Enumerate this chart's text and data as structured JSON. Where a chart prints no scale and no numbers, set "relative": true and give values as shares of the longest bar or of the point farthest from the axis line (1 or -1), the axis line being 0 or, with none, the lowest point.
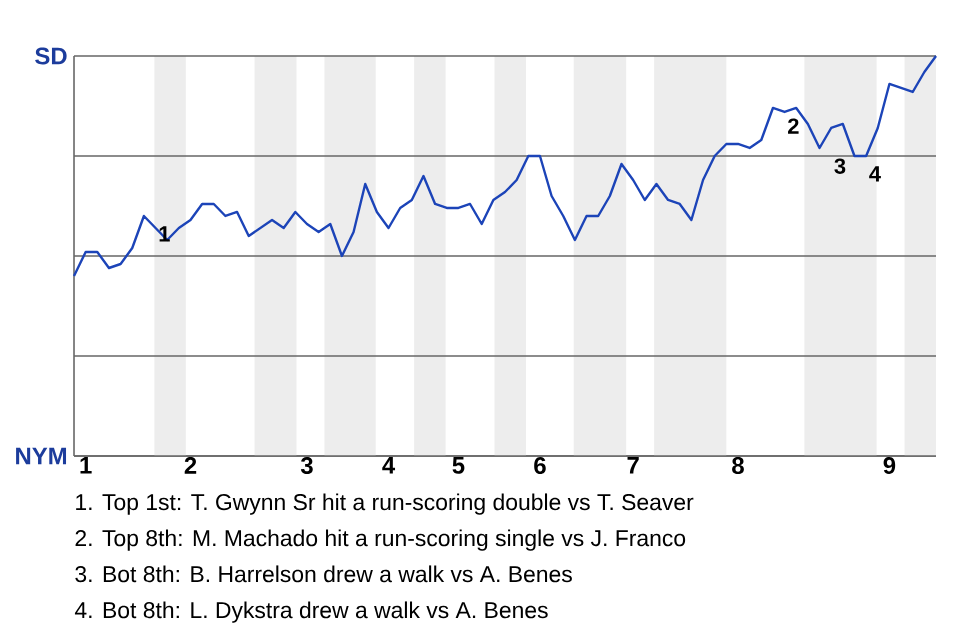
{
  "chart_data": {
    "type": "line",
    "relative": true,
    "categories": [
      null,
      "1",
      null,
      null,
      null,
      null,
      null,
      null,
      null,
      null,
      "2",
      null,
      null,
      null,
      null,
      null,
      null,
      null,
      null,
      null,
      "3",
      null,
      null,
      null,
      null,
      null,
      null,
      "4",
      null,
      null,
      null,
      null,
      null,
      "5",
      null,
      null,
      null,
      null,
      null,
      null,
      "6",
      null,
      null,
      null,
      null,
      null,
      null,
      null,
      "7",
      null,
      null,
      null,
      null,
      null,
      null,
      null,
      null,
      "8",
      null,
      null,
      null,
      null,
      null,
      null,
      null,
      null,
      null,
      null,
      null,
      null,
      "9",
      null,
      null,
      null,
      null
    ],
    "series": [
      {
        "color": "#1c44b8",
        "values": [
          0.45,
          0.51,
          0.51,
          0.47,
          0.48,
          0.52,
          0.6,
          0.57,
          0.54,
          0.57,
          0.59,
          0.63,
          0.63,
          0.6,
          0.61,
          0.55,
          0.57,
          0.59,
          0.57,
          0.61,
          0.58,
          0.56,
          0.58,
          0.5,
          0.56,
          0.68,
          0.61,
          0.57,
          0.62,
          0.64,
          0.7,
          0.63,
          0.62,
          0.62,
          0.63,
          0.58,
          0.64,
          0.66,
          0.69,
          0.75,
          0.75,
          0.65,
          0.6,
          0.54,
          0.6,
          0.6,
          0.65,
          0.73,
          0.69,
          0.64,
          0.68,
          0.64,
          0.63,
          0.59,
          0.69,
          0.75,
          0.78,
          0.78,
          0.77,
          0.79,
          0.87,
          0.86,
          0.87,
          0.83,
          0.77,
          0.82,
          0.83,
          0.75,
          0.75,
          0.82,
          0.93,
          0.92,
          0.91,
          0.96,
          1
        ]
      }
    ],
    "grid": "y",
    "annotations": [
      "SD",
      "NYM",
      "1",
      "2",
      "3",
      "4",
      "1. Top 1st: T. Gwynn Sr hit a run-scoring double vs T. Seaver",
      "2. Top 8th: M. Machado hit a run-scoring single vs J. Franco",
      "3. Bot 8th: B. Harrelson drew a walk vs A. Benes",
      "4. Bot 8th: L. Dykstra drew a walk vs A. Benes"
    ]
  }
}
